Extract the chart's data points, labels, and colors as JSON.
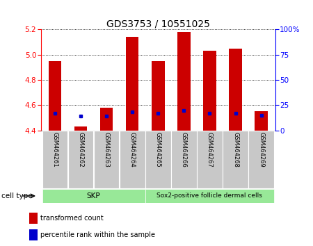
{
  "title": "GDS3753 / 10551025",
  "samples": [
    "GSM464261",
    "GSM464262",
    "GSM464263",
    "GSM464264",
    "GSM464265",
    "GSM464266",
    "GSM464267",
    "GSM464268",
    "GSM464269"
  ],
  "red_bar_top": [
    4.95,
    4.43,
    4.58,
    5.14,
    4.95,
    5.18,
    5.03,
    5.05,
    4.55
  ],
  "red_bar_bottom": 4.4,
  "blue_percentile": [
    17,
    14,
    14,
    18,
    17,
    20,
    17,
    17,
    15
  ],
  "ylim_left": [
    4.4,
    5.2
  ],
  "ylim_right": [
    0,
    100
  ],
  "yticks_left": [
    4.4,
    4.6,
    4.8,
    5.0,
    5.2
  ],
  "yticks_right": [
    0,
    25,
    50,
    75,
    100
  ],
  "ytick_labels_right": [
    "0",
    "25",
    "50",
    "75",
    "100%"
  ],
  "bar_color": "#CC0000",
  "blue_color": "#0000CC",
  "bar_width": 0.5,
  "title_fontsize": 10,
  "tick_fontsize": 7.5,
  "legend_red_label": "transformed count",
  "legend_blue_label": "percentile rank within the sample",
  "skp_color": "#98E898",
  "sox2_color": "#98E898",
  "gray_color": "#C8C8C8"
}
